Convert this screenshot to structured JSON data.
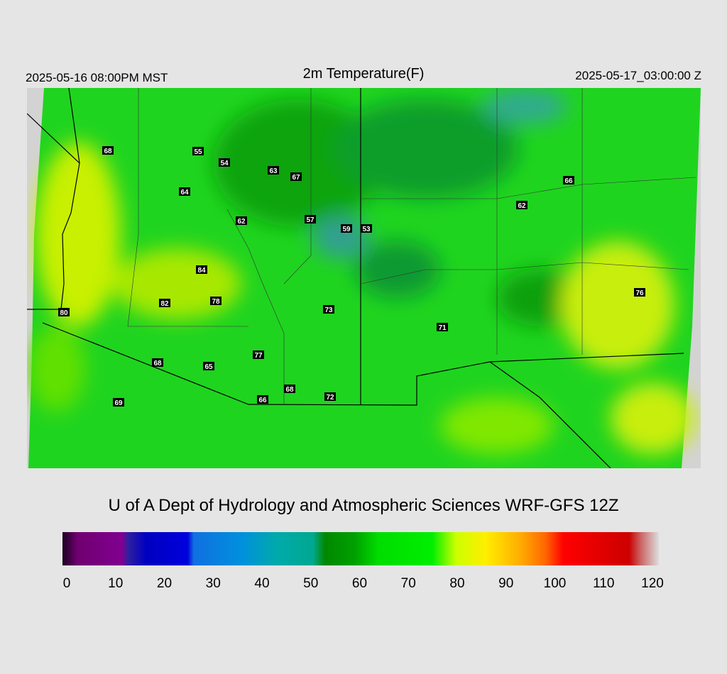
{
  "header": {
    "left": "2025-05-16 08:00PM MST",
    "title": "2m Temperature(F)",
    "right": "2025-05-17_03:00:00 Z"
  },
  "map": {
    "stations": [
      68,
      55,
      54,
      63,
      67,
      64,
      66,
      62,
      62,
      57,
      59,
      53,
      84,
      76,
      82,
      78,
      80,
      73,
      71,
      77,
      68,
      65,
      68,
      72,
      66,
      69
    ]
  },
  "footer": "U of A Dept of Hydrology and Atmospheric Sciences WRF-GFS 12Z",
  "colorbar": {
    "range": [
      0,
      120
    ],
    "ticks": [
      0,
      10,
      20,
      30,
      40,
      50,
      60,
      70,
      80,
      90,
      100,
      110,
      120
    ]
  }
}
